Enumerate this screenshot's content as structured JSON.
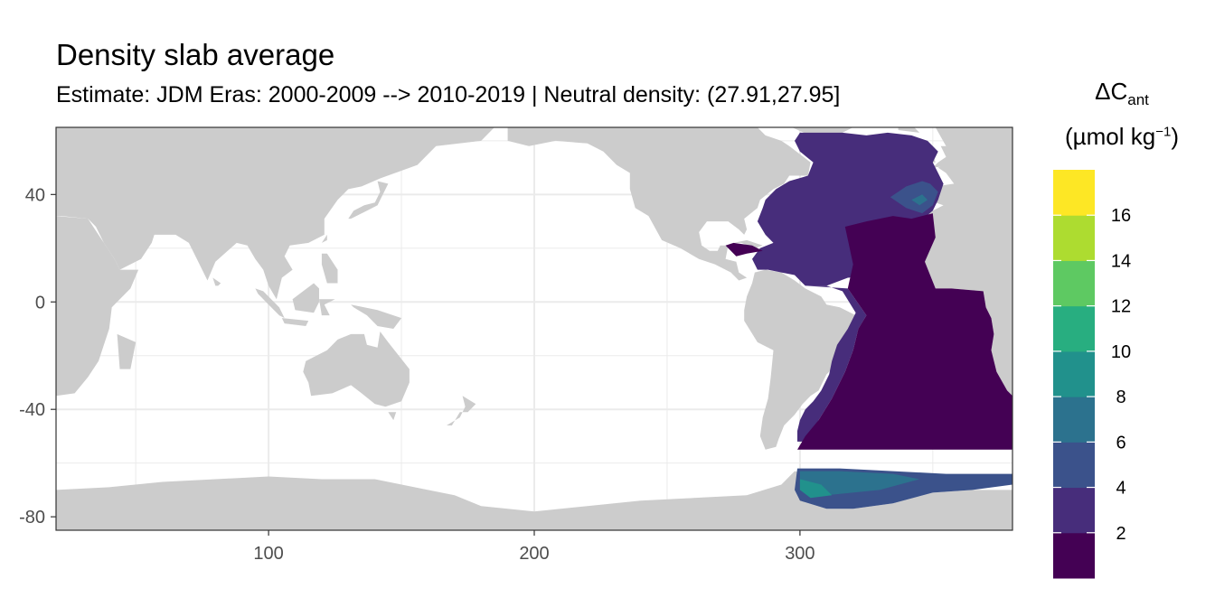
{
  "title": "Density slab average",
  "subtitle": "Estimate: JDM Eras: 2000-2009 --> 2010-2019 | Neutral density: (27.91,27.95]",
  "legend": {
    "symbol": "ΔC",
    "symbol_sub": "ant",
    "unit_main": "(µmol kg",
    "unit_sup": "−1",
    "unit_close": ")",
    "breaks": [
      "2",
      "4",
      "6",
      "8",
      "10",
      "12",
      "14",
      "16"
    ],
    "colors": [
      "#440154",
      "#472d7b",
      "#3b528b",
      "#2c728e",
      "#21918c",
      "#28ae80",
      "#5ec962",
      "#addc30",
      "#fde725"
    ]
  },
  "colors": {
    "land": "#cccccc",
    "ocean": "#ffffff",
    "grid": "#ebebeb",
    "frame": "#333333"
  },
  "chart_data": {
    "type": "heatmap",
    "xlim": [
      20,
      380
    ],
    "ylim": [
      -85,
      65
    ],
    "x_ticks": [
      100,
      200,
      300
    ],
    "y_ticks": [
      40,
      0,
      -40,
      -80
    ],
    "grid": true,
    "legend_position": "right",
    "fill_bins": [
      0,
      2,
      4,
      6,
      8,
      10,
      12,
      14,
      16,
      18
    ]
  }
}
